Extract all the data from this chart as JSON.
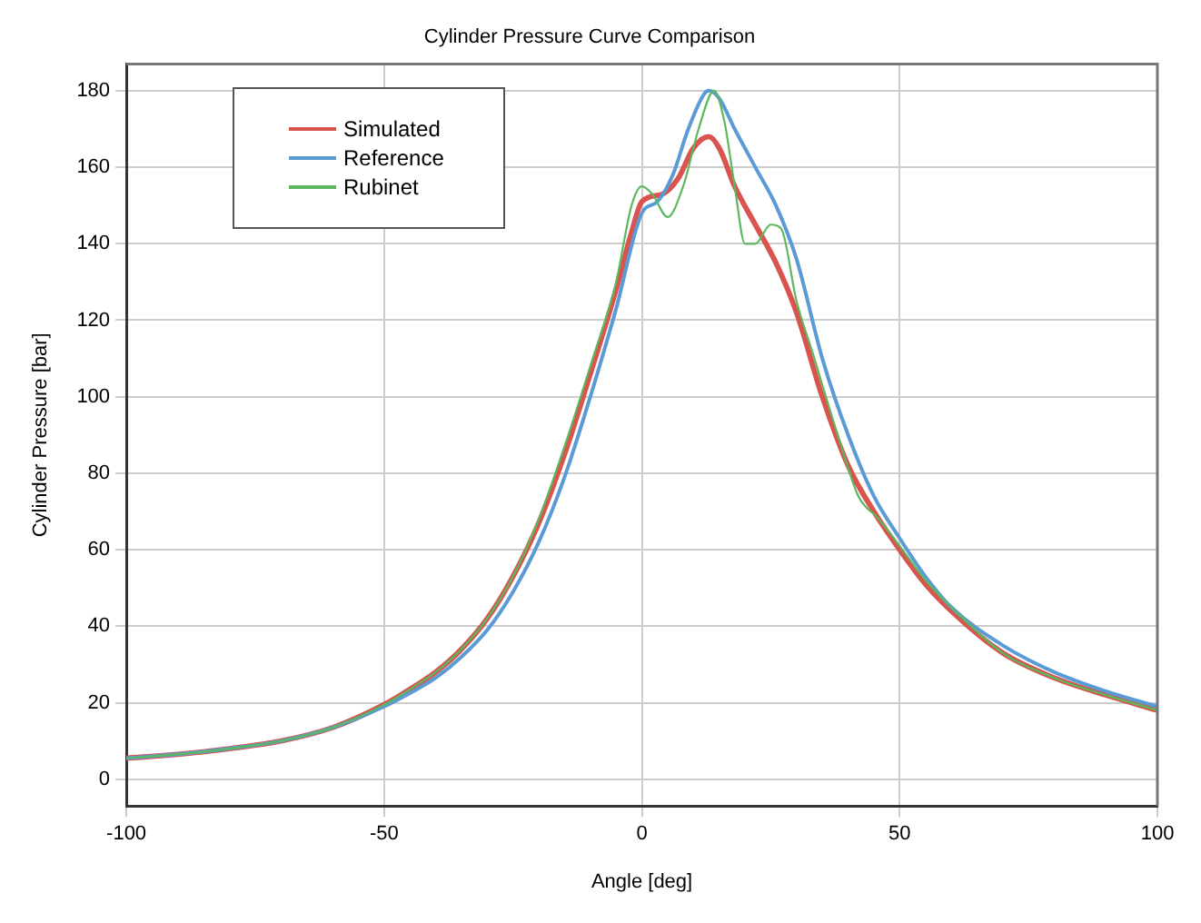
{
  "chart_data": {
    "type": "line",
    "title": "Cylinder Pressure Curve Comparison",
    "xlabel": "Angle [deg]",
    "ylabel": "Cylinder Pressure [bar]",
    "xlim": [
      -100,
      100
    ],
    "xticks": [
      -100,
      -50,
      0,
      50,
      100
    ],
    "ylim": [
      -7,
      187
    ],
    "yticks": [
      0,
      20,
      40,
      60,
      80,
      100,
      120,
      140,
      160,
      180
    ],
    "grid": true,
    "legend": "top left",
    "series": [
      {
        "name": "Simulated",
        "color": "#d9534f",
        "x": [
          -100,
          -90,
          -80,
          -70,
          -60,
          -50,
          -45,
          -40,
          -35,
          -30,
          -25,
          -20,
          -15,
          -10,
          -5,
          -2,
          0,
          4,
          7,
          10,
          13,
          15,
          18,
          22,
          26,
          30,
          35,
          40,
          45,
          50,
          55,
          60,
          70,
          80,
          90,
          100
        ],
        "values": [
          5.5,
          6.5,
          8,
          10,
          13.5,
          19.5,
          23.5,
          28,
          34,
          42,
          53,
          67,
          85,
          106,
          128,
          143,
          151,
          153,
          157,
          165,
          168,
          165,
          155,
          145,
          135,
          122,
          100,
          82,
          70,
          60,
          51,
          44,
          33,
          26.5,
          22,
          18
        ]
      },
      {
        "name": "Reference",
        "color": "#5b9bd5",
        "x": [
          -100,
          -90,
          -80,
          -70,
          -60,
          -50,
          -45,
          -40,
          -35,
          -30,
          -25,
          -20,
          -15,
          -10,
          -5,
          0,
          3,
          6,
          9,
          12,
          13,
          15,
          18,
          22,
          26,
          30,
          35,
          40,
          45,
          50,
          55,
          60,
          70,
          80,
          90,
          100
        ],
        "values": [
          5.5,
          6.5,
          8,
          10,
          13.5,
          19,
          22.5,
          26.5,
          32,
          39,
          49,
          62,
          79,
          100,
          123,
          148,
          151,
          158,
          170,
          179,
          180,
          178,
          170,
          160,
          150,
          136,
          110,
          90,
          74,
          63,
          53,
          45,
          35,
          28,
          23,
          19
        ]
      },
      {
        "name": "Rubinet",
        "color": "#5cb85c",
        "x": [
          -100,
          -90,
          -80,
          -70,
          -60,
          -50,
          -45,
          -40,
          -35,
          -30,
          -25,
          -20,
          -15,
          -10,
          -5,
          -2,
          0,
          2,
          5,
          8,
          11,
          14,
          16,
          18,
          20,
          22,
          25,
          27,
          30,
          33,
          38,
          42,
          46,
          50,
          55,
          60,
          70,
          80,
          90,
          100
        ],
        "values": [
          5.5,
          6.5,
          8,
          10,
          13.5,
          19.5,
          23.5,
          28,
          34,
          42,
          53,
          68,
          87,
          108,
          130,
          150,
          155,
          153,
          147,
          155,
          170,
          180,
          172,
          155,
          140,
          140,
          145,
          144,
          125,
          112,
          90,
          74,
          68,
          61,
          52,
          45,
          33,
          26.5,
          22,
          18
        ]
      }
    ]
  }
}
